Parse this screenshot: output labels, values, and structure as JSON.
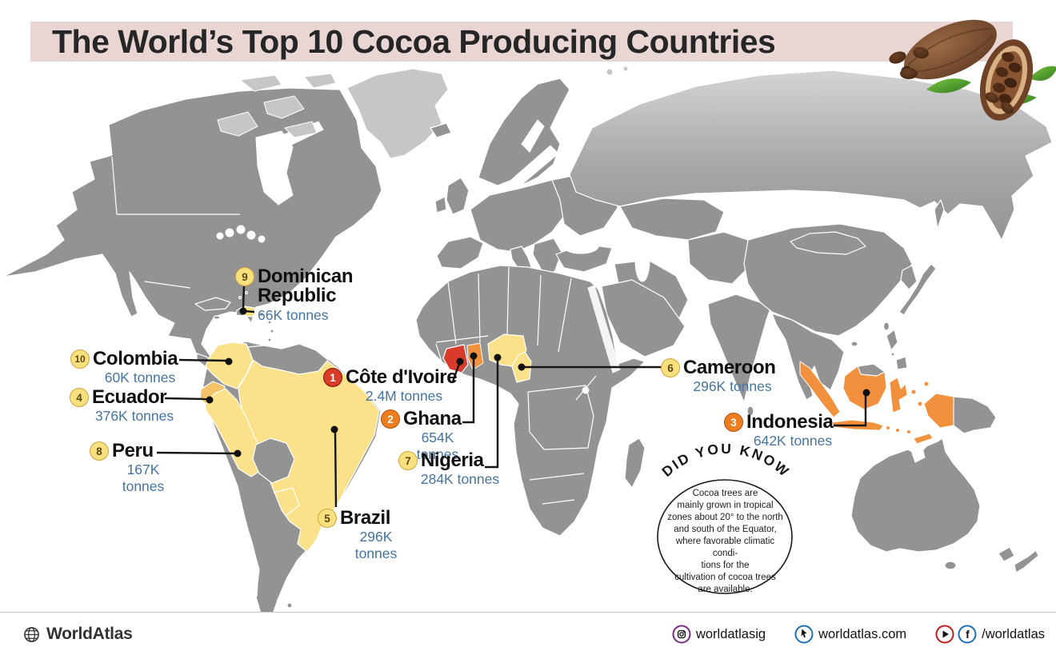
{
  "title": "The World’s Top 10 Cocoa Producing Countries",
  "countries": [
    {
      "rank": 1,
      "name": "Côte d'Ivoire",
      "value": "2.4M tonnes",
      "tier": "red"
    },
    {
      "rank": 2,
      "name": "Ghana",
      "value": "654K tonnes",
      "tier": "orange"
    },
    {
      "rank": 3,
      "name": "Indonesia",
      "value": "642K tonnes",
      "tier": "orange"
    },
    {
      "rank": 4,
      "name": "Ecuador",
      "value": "376K tonnes",
      "tier": "yellow"
    },
    {
      "rank": 5,
      "name": "Brazil",
      "value": "296K tonnes",
      "tier": "yellow"
    },
    {
      "rank": 6,
      "name": "Cameroon",
      "value": "296K tonnes",
      "tier": "yellow"
    },
    {
      "rank": 7,
      "name": "Nigeria",
      "value": "284K tonnes",
      "tier": "yellow"
    },
    {
      "rank": 8,
      "name": "Peru",
      "value": "167K tonnes",
      "tier": "yellow"
    },
    {
      "rank": 9,
      "name": "Dominican Republic",
      "value": "66K tonnes",
      "tier": "yellow"
    },
    {
      "rank": 10,
      "name": "Colombia",
      "value": "60K tonnes",
      "tier": "yellow"
    }
  ],
  "did_you_know": {
    "heading": "DID YOU KNOW ?",
    "body_lines": [
      "Cocoa trees are",
      "mainly grown in tropical",
      "zones about 20° to the north",
      "and south of the Equator,",
      "where favorable climatic condi-",
      "tions for the",
      "cultivation of cocoa trees",
      "are available."
    ]
  },
  "footer": {
    "brand": "WorldAtlas",
    "items": [
      {
        "icon": "instagram-icon",
        "label": "worldatlasig"
      },
      {
        "icon": "cursor-icon",
        "label": "worldatlas.com"
      },
      {
        "icon": "play-icon facebook-icon",
        "label": "/worldatlas"
      }
    ]
  },
  "colors": {
    "bannerPink": "#e9d5d2",
    "landGray": "#939393",
    "landLight": "#c6c6c6",
    "yellow": "#fbe28a",
    "ecuador": "#f4c269",
    "orange": "#f2913d",
    "red": "#d93b2a",
    "valueText": "#46749f"
  }
}
